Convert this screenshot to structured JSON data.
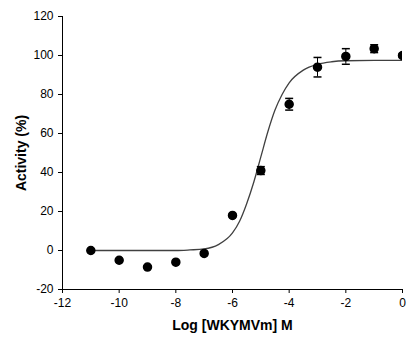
{
  "chart_data": {
    "type": "scatter",
    "x_label": "Log [WKYMVm] M",
    "y_label": "Activity (%)",
    "x": [
      -11,
      -10,
      -9,
      -8,
      -7,
      -6,
      -5,
      -4,
      -3,
      -2,
      -1,
      0
    ],
    "values": [
      0,
      -5,
      -8.5,
      -6,
      -1.5,
      18,
      41,
      75,
      94,
      99.5,
      103.5,
      100
    ],
    "errors": [
      null,
      null,
      null,
      null,
      null,
      null,
      2,
      3,
      5,
      4,
      2,
      1
    ],
    "color": "#000000",
    "marker": "circle",
    "fit": {
      "type": "line",
      "line_style": "solid",
      "color": "#404040",
      "x": [
        -11,
        -10,
        -9,
        -8,
        -7.5,
        -7,
        -6.5,
        -6,
        -5.75,
        -5.5,
        -5.25,
        -5,
        -4.75,
        -4.5,
        -4.25,
        -4,
        -3.5,
        -3,
        -2.5,
        -2,
        -1,
        0
      ],
      "values": [
        0,
        0,
        0,
        0,
        0.3,
        0.8,
        3,
        9,
        15,
        24,
        35,
        48,
        61,
        72,
        80,
        86,
        92.5,
        95.5,
        96.8,
        97.3,
        97.5,
        97.5
      ]
    },
    "xlim": [
      -12,
      0
    ],
    "xticks": [
      -12,
      -10,
      -8,
      -6,
      -4,
      -2,
      0
    ],
    "ylim": [
      -20,
      120
    ],
    "yticks": [
      -20,
      0,
      20,
      40,
      60,
      80,
      100,
      120
    ],
    "grid": false
  }
}
